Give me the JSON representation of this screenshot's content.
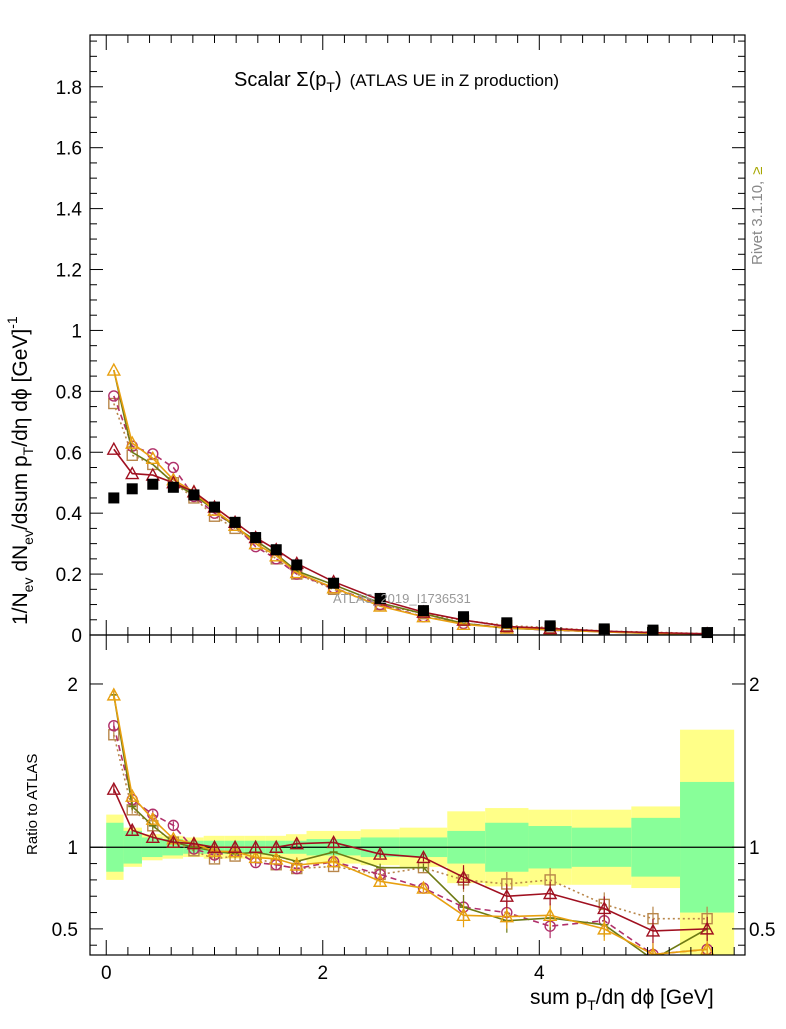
{
  "chart_data": {
    "type": "line",
    "title_symbol": "Scalar Σ(p",
    "title_sub": "T",
    "title_close": ")",
    "title_detail": "(ATLAS UE in Z production)",
    "rivet_label": "Rivet 3.1.10,",
    "rivet_suffix": "≥",
    "analysis_label": "ATLAS_2019_I1736531",
    "x_label": "sum p",
    "x_label_sub": "T",
    "x_label_rest": "/dη dϕ [GeV]",
    "y_label": "1/N_ev dN_ev/dsum p_T/dη dϕ [GeV]^-1",
    "ratio_label": "Ratio to ATLAS",
    "xlim": [
      -0.15,
      5.9
    ],
    "ylim_main": [
      0,
      1.97
    ],
    "ylim_ratio": [
      0.34,
      2.3
    ],
    "x_ticks": [
      "0",
      "2",
      "4"
    ],
    "y_ticks_main": [
      "0",
      "0.2",
      "0.4",
      "0.6",
      "0.8",
      "1",
      "1.2",
      "1.4",
      "1.6",
      "1.8"
    ],
    "y_ticks_ratio": [
      "0.5",
      "1",
      "2"
    ],
    "x": [
      0.07,
      0.24,
      0.43,
      0.62,
      0.81,
      1.0,
      1.19,
      1.38,
      1.57,
      1.76,
      2.1,
      2.53,
      2.93,
      3.3,
      3.7,
      4.1,
      4.6,
      5.05,
      5.55
    ],
    "data": [
      0.45,
      0.48,
      0.495,
      0.485,
      0.46,
      0.42,
      0.37,
      0.32,
      0.28,
      0.23,
      0.17,
      0.12,
      0.08,
      0.06,
      0.04,
      0.03,
      0.02,
      0.016,
      0.008
    ],
    "band_edges": [
      0.0,
      0.16,
      0.33,
      0.52,
      0.71,
      0.9,
      1.09,
      1.28,
      1.47,
      1.66,
      1.85,
      2.35,
      2.71,
      3.15,
      3.5,
      3.9,
      4.3,
      4.85,
      5.3,
      5.8
    ],
    "band_stat": [
      0.15,
      0.1,
      0.06,
      0.05,
      0.04,
      0.04,
      0.04,
      0.04,
      0.04,
      0.04,
      0.05,
      0.06,
      0.06,
      0.1,
      0.15,
      0.13,
      0.12,
      0.18,
      0.4
    ],
    "band_total": [
      0.2,
      0.12,
      0.08,
      0.07,
      0.06,
      0.07,
      0.07,
      0.07,
      0.07,
      0.08,
      0.1,
      0.11,
      0.12,
      0.22,
      0.24,
      0.23,
      0.23,
      0.25,
      0.72
    ],
    "series": [
      {
        "name": "mc-square",
        "color": "#b8864a",
        "marker": "square",
        "dash": "2,3",
        "values": [
          0.76,
          0.59,
          0.56,
          0.5,
          0.45,
          0.39,
          0.35,
          0.3,
          0.25,
          0.2,
          0.15,
          0.1,
          0.07,
          0.048,
          0.031,
          0.024,
          0.013,
          0.009,
          0.0045
        ]
      },
      {
        "name": "mc-circle",
        "color": "#b0306a",
        "marker": "circle",
        "dash": "6,4",
        "values": [
          0.785,
          0.62,
          0.595,
          0.55,
          0.455,
          0.4,
          0.36,
          0.29,
          0.25,
          0.2,
          0.155,
          0.1,
          0.06,
          0.038,
          0.024,
          0.0155,
          0.011,
          0.0055,
          0.003
        ]
      },
      {
        "name": "mc-olive",
        "color": "#6e7a14",
        "marker": "none",
        "dash": "",
        "values": [
          0.87,
          0.6,
          0.56,
          0.5,
          0.46,
          0.41,
          0.355,
          0.31,
          0.265,
          0.21,
          0.165,
          0.105,
          0.07,
          0.038,
          0.022,
          0.017,
          0.0105,
          0.005,
          0.004
        ]
      },
      {
        "name": "mc-orange",
        "color": "#e8a010",
        "marker": "triangle",
        "dash": "",
        "values": [
          0.87,
          0.63,
          0.58,
          0.51,
          0.47,
          0.41,
          0.36,
          0.3,
          0.26,
          0.205,
          0.155,
          0.095,
          0.06,
          0.035,
          0.023,
          0.0175,
          0.01,
          0.0055,
          0.003
        ]
      },
      {
        "name": "mc-crimson",
        "color": "#a01020",
        "marker": "triangle",
        "dash": "",
        "values": [
          0.61,
          0.53,
          0.525,
          0.5,
          0.47,
          0.42,
          0.37,
          0.32,
          0.28,
          0.235,
          0.175,
          0.115,
          0.075,
          0.049,
          0.028,
          0.0215,
          0.0125,
          0.0078,
          0.004
        ]
      }
    ]
  }
}
